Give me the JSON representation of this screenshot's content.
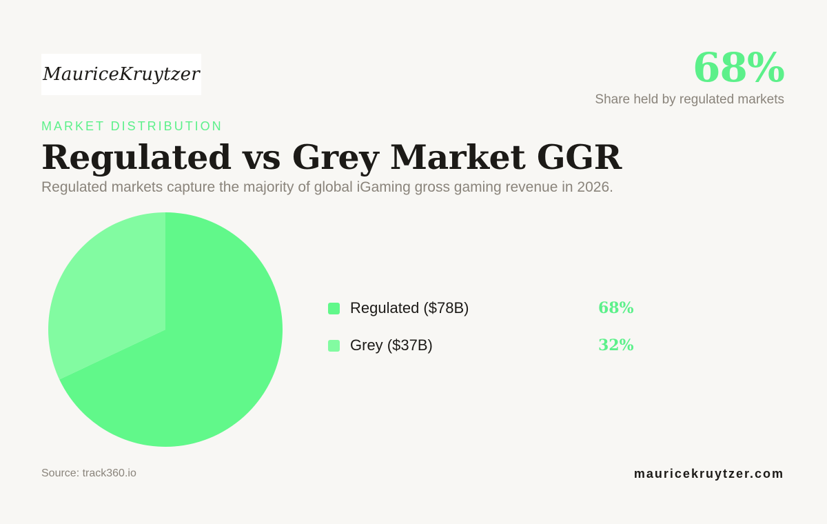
{
  "brand": {
    "logo_text": "MauriceKruytzer",
    "website": "mauricekruytzer.com"
  },
  "kpi": {
    "value": "68%",
    "label": "Share held by regulated markets"
  },
  "eyebrow": "MARKET DISTRIBUTION",
  "title": "Regulated vs Grey Market GGR",
  "subtitle": "Regulated markets capture the majority of global iGaming gross gaming revenue in 2026.",
  "chart_data": {
    "type": "pie",
    "slices": [
      {
        "label": "Regulated ($78B)",
        "value": 68,
        "percent_label": "68%",
        "color": "#61f88a"
      },
      {
        "label": "Grey ($37B)",
        "value": 32,
        "percent_label": "32%",
        "color": "#82fba1"
      }
    ]
  },
  "source": "Source: track360.io",
  "colors": {
    "accent": "#5cf08a",
    "background": "#f8f7f4",
    "text": "#1c1a17",
    "muted": "#8a847b"
  }
}
